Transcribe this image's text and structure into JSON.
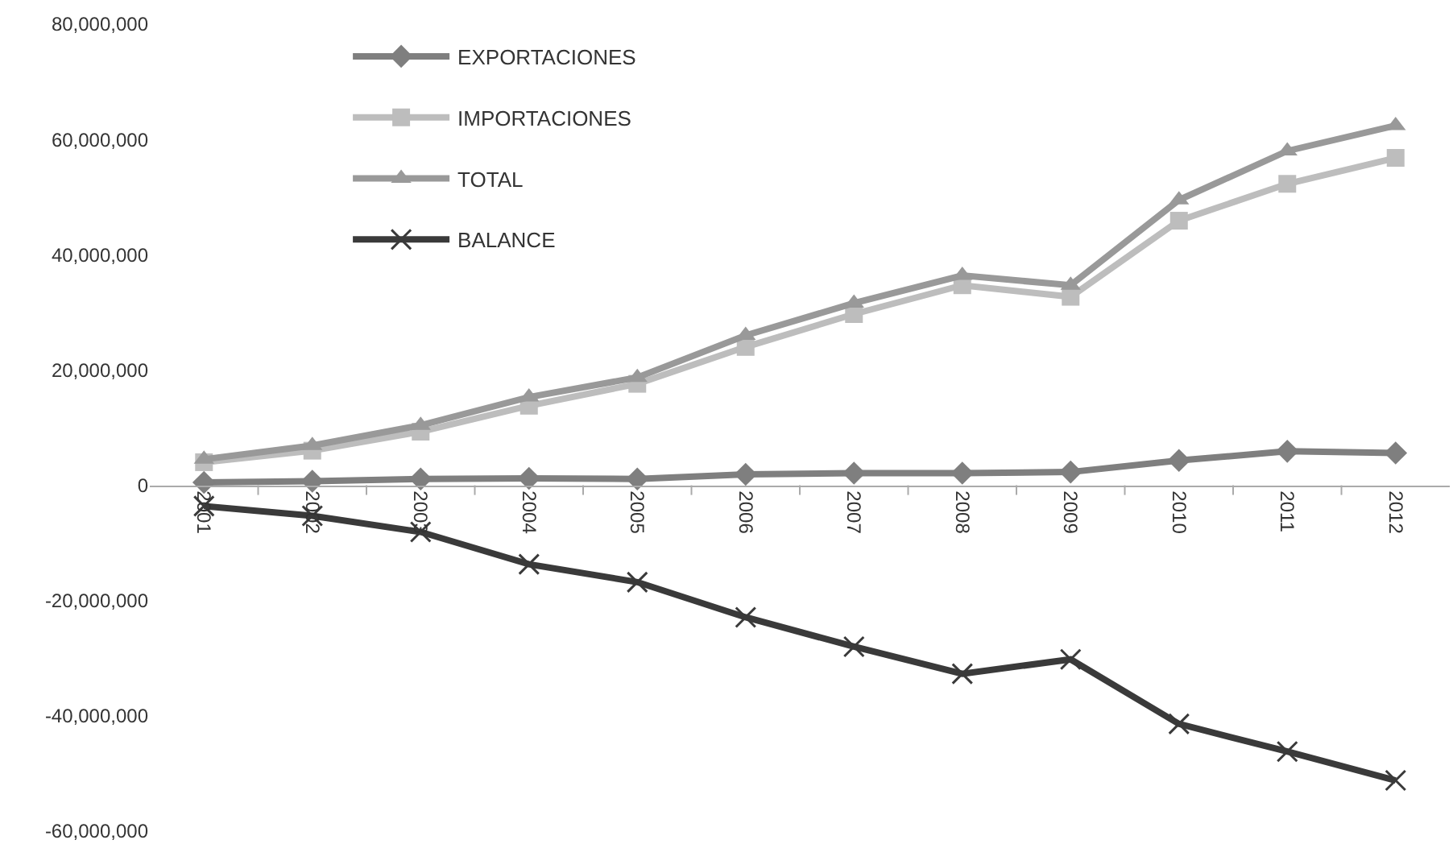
{
  "chart_data": {
    "type": "line",
    "categories": [
      "2001",
      "2002",
      "2003",
      "2004",
      "2005",
      "2006",
      "2007",
      "2008",
      "2009",
      "2010",
      "2011",
      "2012"
    ],
    "series": [
      {
        "name": "EXPORTACIONES",
        "color": "#7f7f7f",
        "marker": "diamond",
        "values": [
          500000,
          700000,
          1100000,
          1200000,
          1100000,
          1900000,
          2100000,
          2100000,
          2300000,
          4300000,
          5900000,
          5600000
        ]
      },
      {
        "name": "IMPORTACIONES",
        "color": "#bdbdbd",
        "marker": "square",
        "values": [
          4000000,
          6000000,
          9300000,
          13800000,
          17600000,
          24000000,
          29700000,
          34700000,
          32700000,
          45900000,
          52300000,
          56800000
        ]
      },
      {
        "name": "TOTAL",
        "color": "#999999",
        "marker": "triangle",
        "values": [
          4500000,
          6900000,
          10400000,
          15300000,
          18700000,
          26000000,
          31600000,
          36400000,
          34700000,
          49500000,
          58000000,
          62400000
        ]
      },
      {
        "name": "BALANCE",
        "color": "#3a3a3a",
        "marker": "cross",
        "values": [
          -3600000,
          -5300000,
          -8100000,
          -13700000,
          -16800000,
          -22900000,
          -28000000,
          -32700000,
          -30200000,
          -41400000,
          -46200000,
          -51200000
        ]
      }
    ],
    "ylim": [
      -60000000,
      80000000
    ],
    "yticks": [
      {
        "value": -60000000,
        "label": "-60,000,000"
      },
      {
        "value": -40000000,
        "label": "-40,000,000"
      },
      {
        "value": -20000000,
        "label": "-20,000,000"
      },
      {
        "value": 0,
        "label": "0"
      },
      {
        "value": 20000000,
        "label": "20,000,000"
      },
      {
        "value": 40000000,
        "label": "40,000,000"
      },
      {
        "value": 60000000,
        "label": "60,000,000"
      },
      {
        "value": 80000000,
        "label": "80,000,000"
      }
    ],
    "legend": "top left",
    "line_style": "solid"
  }
}
